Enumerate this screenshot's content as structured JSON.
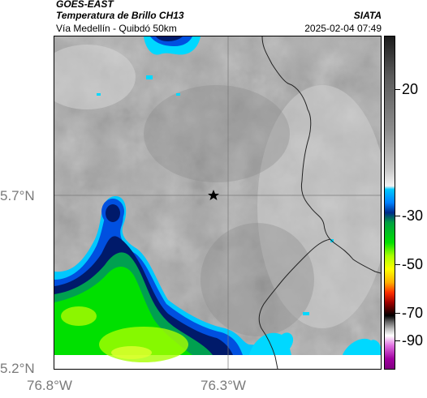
{
  "header": {
    "satellite": "GOES-EAST",
    "product": "Temperatura de Brillo CH13",
    "region": "Vía Medellín - Quibdó 50km",
    "agency": "SIATA",
    "timestamp": "2025-02-04 07:49"
  },
  "map": {
    "lat_labels": [
      "5.7°N",
      "5.2°N"
    ],
    "lon_labels": [
      "76.8°W",
      "76.3°W"
    ],
    "marker": "star-marker",
    "colors": {
      "cloud_gray": "#a8a8a8",
      "cyan": "#00d8ff",
      "blue": "#0050e0",
      "navy": "#001a6a",
      "green": "#00e000",
      "yellow_green": "#c8ff00"
    }
  },
  "colorbar": {
    "labels": [
      "20",
      "-30",
      "-50",
      "-70",
      "-90"
    ]
  }
}
